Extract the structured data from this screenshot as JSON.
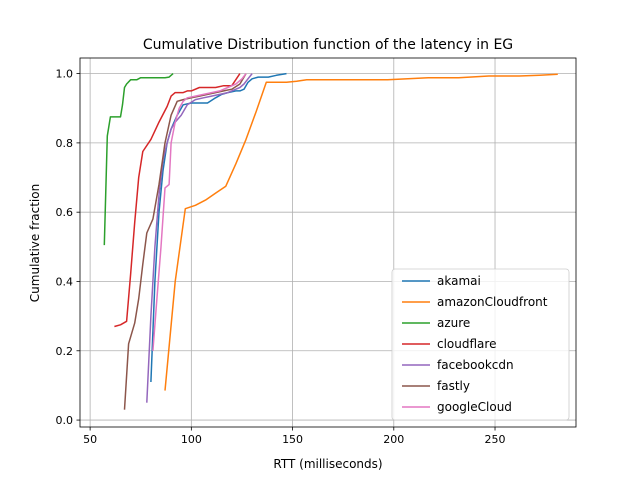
{
  "chart_data": {
    "type": "line",
    "title": "Cumulative Distribution function of the latency in EG",
    "xlabel": "RTT (milliseconds)",
    "ylabel": "Cumulative fraction",
    "xlim": [
      45,
      290
    ],
    "ylim": [
      -0.02,
      1.045
    ],
    "xticks": [
      50,
      100,
      150,
      200,
      250
    ],
    "yticks": [
      0.0,
      0.2,
      0.4,
      0.6,
      0.8,
      1.0
    ],
    "xtick_labels": [
      "50",
      "100",
      "150",
      "200",
      "250"
    ],
    "ytick_labels": [
      "0.0",
      "0.2",
      "0.4",
      "0.6",
      "0.8",
      "1.0"
    ],
    "grid": true,
    "legend_position": "lower right",
    "series": [
      {
        "name": "akamai",
        "color": "#1f77b4",
        "x": [
          80,
          82,
          84,
          86,
          88,
          90,
          93,
          96,
          100,
          105,
          108,
          112,
          115,
          118,
          122,
          124,
          126,
          128,
          130,
          133,
          138,
          142,
          147
        ],
        "y": [
          0.11,
          0.4,
          0.6,
          0.72,
          0.8,
          0.84,
          0.88,
          0.91,
          0.915,
          0.915,
          0.915,
          0.93,
          0.94,
          0.945,
          0.95,
          0.95,
          0.955,
          0.975,
          0.985,
          0.99,
          0.99,
          0.995,
          1.0
        ]
      },
      {
        "name": "amazonCloudfront",
        "color": "#ff7f0e",
        "x": [
          87,
          92,
          97,
          102,
          107,
          112,
          117,
          122,
          127,
          132,
          137,
          142,
          147,
          152,
          157,
          177,
          197,
          217,
          232,
          247,
          262,
          272,
          281
        ],
        "y": [
          0.085,
          0.4,
          0.61,
          0.62,
          0.635,
          0.655,
          0.675,
          0.74,
          0.81,
          0.89,
          0.975,
          0.975,
          0.975,
          0.978,
          0.982,
          0.982,
          0.982,
          0.988,
          0.988,
          0.993,
          0.993,
          0.995,
          0.998
        ]
      },
      {
        "name": "azure",
        "color": "#2ca02c",
        "x": [
          57,
          58.5,
          60,
          63,
          65,
          66,
          67,
          68,
          70,
          71,
          73,
          75,
          77,
          79,
          81,
          83,
          85,
          87,
          89,
          91
        ],
        "y": [
          0.505,
          0.82,
          0.875,
          0.875,
          0.875,
          0.91,
          0.96,
          0.97,
          0.982,
          0.982,
          0.982,
          0.988,
          0.988,
          0.988,
          0.988,
          0.988,
          0.988,
          0.988,
          0.99,
          1.0
        ]
      },
      {
        "name": "cloudflare",
        "color": "#d62728",
        "x": [
          62,
          65,
          68,
          70,
          72,
          74,
          76,
          80,
          84,
          88,
          90,
          92,
          94,
          96,
          98,
          100,
          104,
          108,
          112,
          116,
          120,
          124
        ],
        "y": [
          0.27,
          0.275,
          0.285,
          0.42,
          0.57,
          0.7,
          0.775,
          0.81,
          0.86,
          0.905,
          0.935,
          0.945,
          0.945,
          0.945,
          0.95,
          0.95,
          0.96,
          0.96,
          0.96,
          0.965,
          0.965,
          1.0
        ]
      },
      {
        "name": "facebookcdn",
        "color": "#9467bd",
        "x": [
          78,
          80,
          82,
          84,
          86,
          88,
          90,
          92,
          95,
          98,
          102,
          106,
          110,
          114,
          118,
          122,
          124,
          126,
          128,
          130
        ],
        "y": [
          0.05,
          0.3,
          0.5,
          0.65,
          0.75,
          0.8,
          0.84,
          0.86,
          0.88,
          0.91,
          0.925,
          0.93,
          0.935,
          0.94,
          0.945,
          0.955,
          0.96,
          0.97,
          0.985,
          1.0
        ]
      },
      {
        "name": "fastly",
        "color": "#8c564b",
        "x": [
          67,
          69,
          72,
          74,
          76,
          78,
          81,
          84,
          87,
          90,
          93,
          96,
          100,
          104,
          108,
          112,
          116,
          120,
          124,
          127
        ],
        "y": [
          0.03,
          0.22,
          0.28,
          0.35,
          0.45,
          0.54,
          0.58,
          0.68,
          0.8,
          0.88,
          0.92,
          0.925,
          0.93,
          0.935,
          0.94,
          0.945,
          0.95,
          0.955,
          0.97,
          1.0
        ]
      },
      {
        "name": "googleCloud",
        "color": "#e377c2",
        "x": [
          81,
          83,
          85,
          87,
          89,
          90,
          92,
          94,
          96,
          98,
          102,
          106,
          110,
          114,
          118,
          122,
          125,
          127
        ],
        "y": [
          0.2,
          0.35,
          0.5,
          0.67,
          0.68,
          0.8,
          0.86,
          0.9,
          0.92,
          0.93,
          0.935,
          0.94,
          0.945,
          0.95,
          0.96,
          0.97,
          0.985,
          1.0
        ]
      }
    ]
  }
}
